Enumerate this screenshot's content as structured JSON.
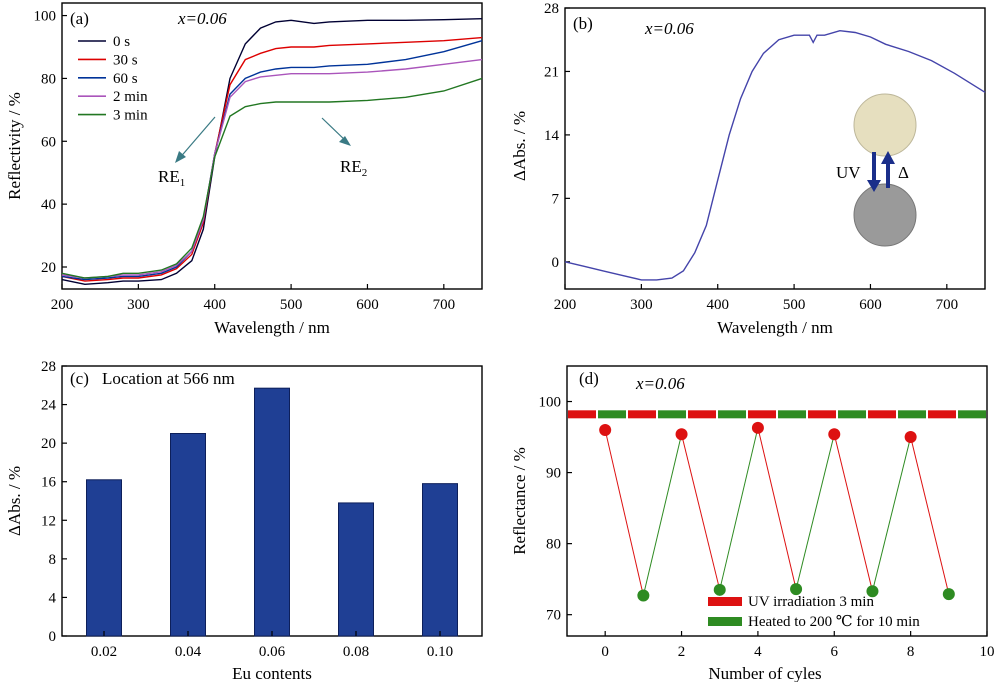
{
  "chart_data": [
    {
      "type": "line",
      "panel_label": "(a)",
      "annotation": "x=0.06",
      "xlabel": "Wavelength / nm",
      "ylabel": "Reflectivity / %",
      "xlim": [
        200,
        750
      ],
      "ylim": [
        13,
        104
      ],
      "xticks": [
        "200",
        "300",
        "400",
        "500",
        "600",
        "700"
      ],
      "yticks": [
        "20",
        "40",
        "60",
        "80",
        "100"
      ],
      "legend_position": "top-left",
      "series": [
        {
          "name": "0 s",
          "color": "#000033",
          "x": [
            200,
            230,
            260,
            280,
            300,
            330,
            350,
            370,
            385,
            400,
            420,
            440,
            460,
            480,
            500,
            530,
            550,
            600,
            650,
            700,
            750
          ],
          "y": [
            16,
            14.5,
            15,
            15.5,
            15.5,
            16,
            18,
            22,
            32,
            55,
            80,
            91,
            96,
            98,
            98.5,
            97.5,
            98,
            98.5,
            98.5,
            98.7,
            99
          ]
        },
        {
          "name": "30 s",
          "color": "#dd0000",
          "x": [
            200,
            230,
            260,
            280,
            300,
            330,
            350,
            370,
            385,
            400,
            420,
            440,
            460,
            480,
            500,
            530,
            550,
            600,
            650,
            700,
            750
          ],
          "y": [
            17,
            15.5,
            16,
            16.5,
            16.5,
            17.5,
            19.5,
            24,
            34,
            56,
            78,
            86,
            88,
            89.5,
            90,
            90,
            90.5,
            91,
            91.5,
            92,
            93
          ]
        },
        {
          "name": "60 s",
          "color": "#003399",
          "x": [
            200,
            230,
            260,
            280,
            300,
            330,
            350,
            370,
            385,
            400,
            420,
            440,
            460,
            480,
            500,
            530,
            550,
            600,
            650,
            700,
            750
          ],
          "y": [
            17,
            16,
            16.5,
            17,
            17,
            18,
            20,
            25,
            35,
            56,
            75,
            80,
            82,
            83,
            83.5,
            83.5,
            84,
            84.5,
            86,
            88.5,
            92
          ]
        },
        {
          "name": "2 min",
          "color": "#aa55bb",
          "x": [
            200,
            230,
            260,
            280,
            300,
            330,
            350,
            370,
            385,
            400,
            420,
            440,
            460,
            480,
            500,
            530,
            550,
            600,
            650,
            700,
            750
          ],
          "y": [
            17.5,
            16.5,
            17,
            17.5,
            17.5,
            18.5,
            20.5,
            25,
            35,
            56,
            74,
            79,
            80.5,
            81,
            81.5,
            81.5,
            81.5,
            82,
            83,
            84.5,
            86
          ]
        },
        {
          "name": "3 min",
          "color": "#227722",
          "x": [
            200,
            230,
            260,
            280,
            300,
            330,
            350,
            370,
            385,
            400,
            420,
            440,
            460,
            480,
            500,
            530,
            550,
            600,
            650,
            700,
            750
          ],
          "y": [
            18,
            16.5,
            17,
            18,
            18,
            19,
            21,
            26,
            36,
            55,
            68,
            71,
            72,
            72.5,
            72.5,
            72.5,
            72.5,
            73,
            74,
            76,
            80
          ]
        }
      ],
      "annotations": [
        {
          "text": "RE",
          "sub": "1"
        },
        {
          "text": "RE",
          "sub": "2"
        }
      ]
    },
    {
      "type": "line",
      "panel_label": "(b)",
      "annotation": "x=0.06",
      "xlabel": "Wavelength / nm",
      "ylabel": "ΔAbs. / %",
      "xlim": [
        200,
        750
      ],
      "ylim": [
        -3,
        28
      ],
      "xticks": [
        "200",
        "300",
        "400",
        "500",
        "600",
        "700"
      ],
      "yticks": [
        "0",
        "7",
        "14",
        "21",
        "28"
      ],
      "series": [
        {
          "name": "",
          "color": "#4444aa",
          "x": [
            200,
            225,
            250,
            275,
            300,
            320,
            340,
            355,
            370,
            385,
            400,
            415,
            430,
            445,
            460,
            480,
            500,
            520,
            525,
            530,
            540,
            560,
            580,
            600,
            620,
            650,
            680,
            710,
            750
          ],
          "y": [
            0,
            -0.5,
            -1,
            -1.5,
            -2,
            -2,
            -1.8,
            -1,
            1,
            4,
            9,
            14,
            18,
            21,
            23,
            24.5,
            25,
            25,
            24.2,
            25,
            25,
            25.5,
            25.3,
            24.8,
            24,
            23.2,
            22.2,
            20.8,
            18.7
          ]
        }
      ],
      "inset_labels": {
        "uv": "UV",
        "heat": "Δ"
      }
    },
    {
      "type": "bar",
      "panel_label": "(c)",
      "annotation": "Location at 566 nm",
      "xlabel": "Eu contents",
      "ylabel": "ΔAbs. / %",
      "ylim": [
        0,
        28
      ],
      "yticks": [
        "0",
        "4",
        "8",
        "12",
        "16",
        "20",
        "24",
        "28"
      ],
      "categories": [
        "0.02",
        "0.04",
        "0.06",
        "0.08",
        "0.10"
      ],
      "values": [
        16.2,
        21.0,
        25.7,
        13.8,
        15.8
      ],
      "color": "#1f3f94"
    },
    {
      "type": "line",
      "panel_label": "(d)",
      "annotation": "x=0.06",
      "xlabel": "Number of cyles",
      "ylabel": "Reflectance / %",
      "xlim": [
        -1,
        10
      ],
      "ylim": [
        67,
        105
      ],
      "xticks": [
        "0",
        "2",
        "4",
        "6",
        "8",
        "10"
      ],
      "yticks": [
        "70",
        "80",
        "90",
        "100"
      ],
      "x": [
        0,
        1,
        2,
        3,
        4,
        5,
        6,
        7,
        8,
        9
      ],
      "y": [
        96,
        72.7,
        95.4,
        73.5,
        96.3,
        73.6,
        95.4,
        73.3,
        95.0,
        72.9
      ],
      "reference_level": 98.2,
      "colors": {
        "uv": "#dd1111",
        "heat": "#2e8b22"
      },
      "legend": [
        {
          "label": "UV irradiation 3 min"
        },
        {
          "label": "Heated to 200 ℃ for 10 min"
        }
      ]
    }
  ]
}
